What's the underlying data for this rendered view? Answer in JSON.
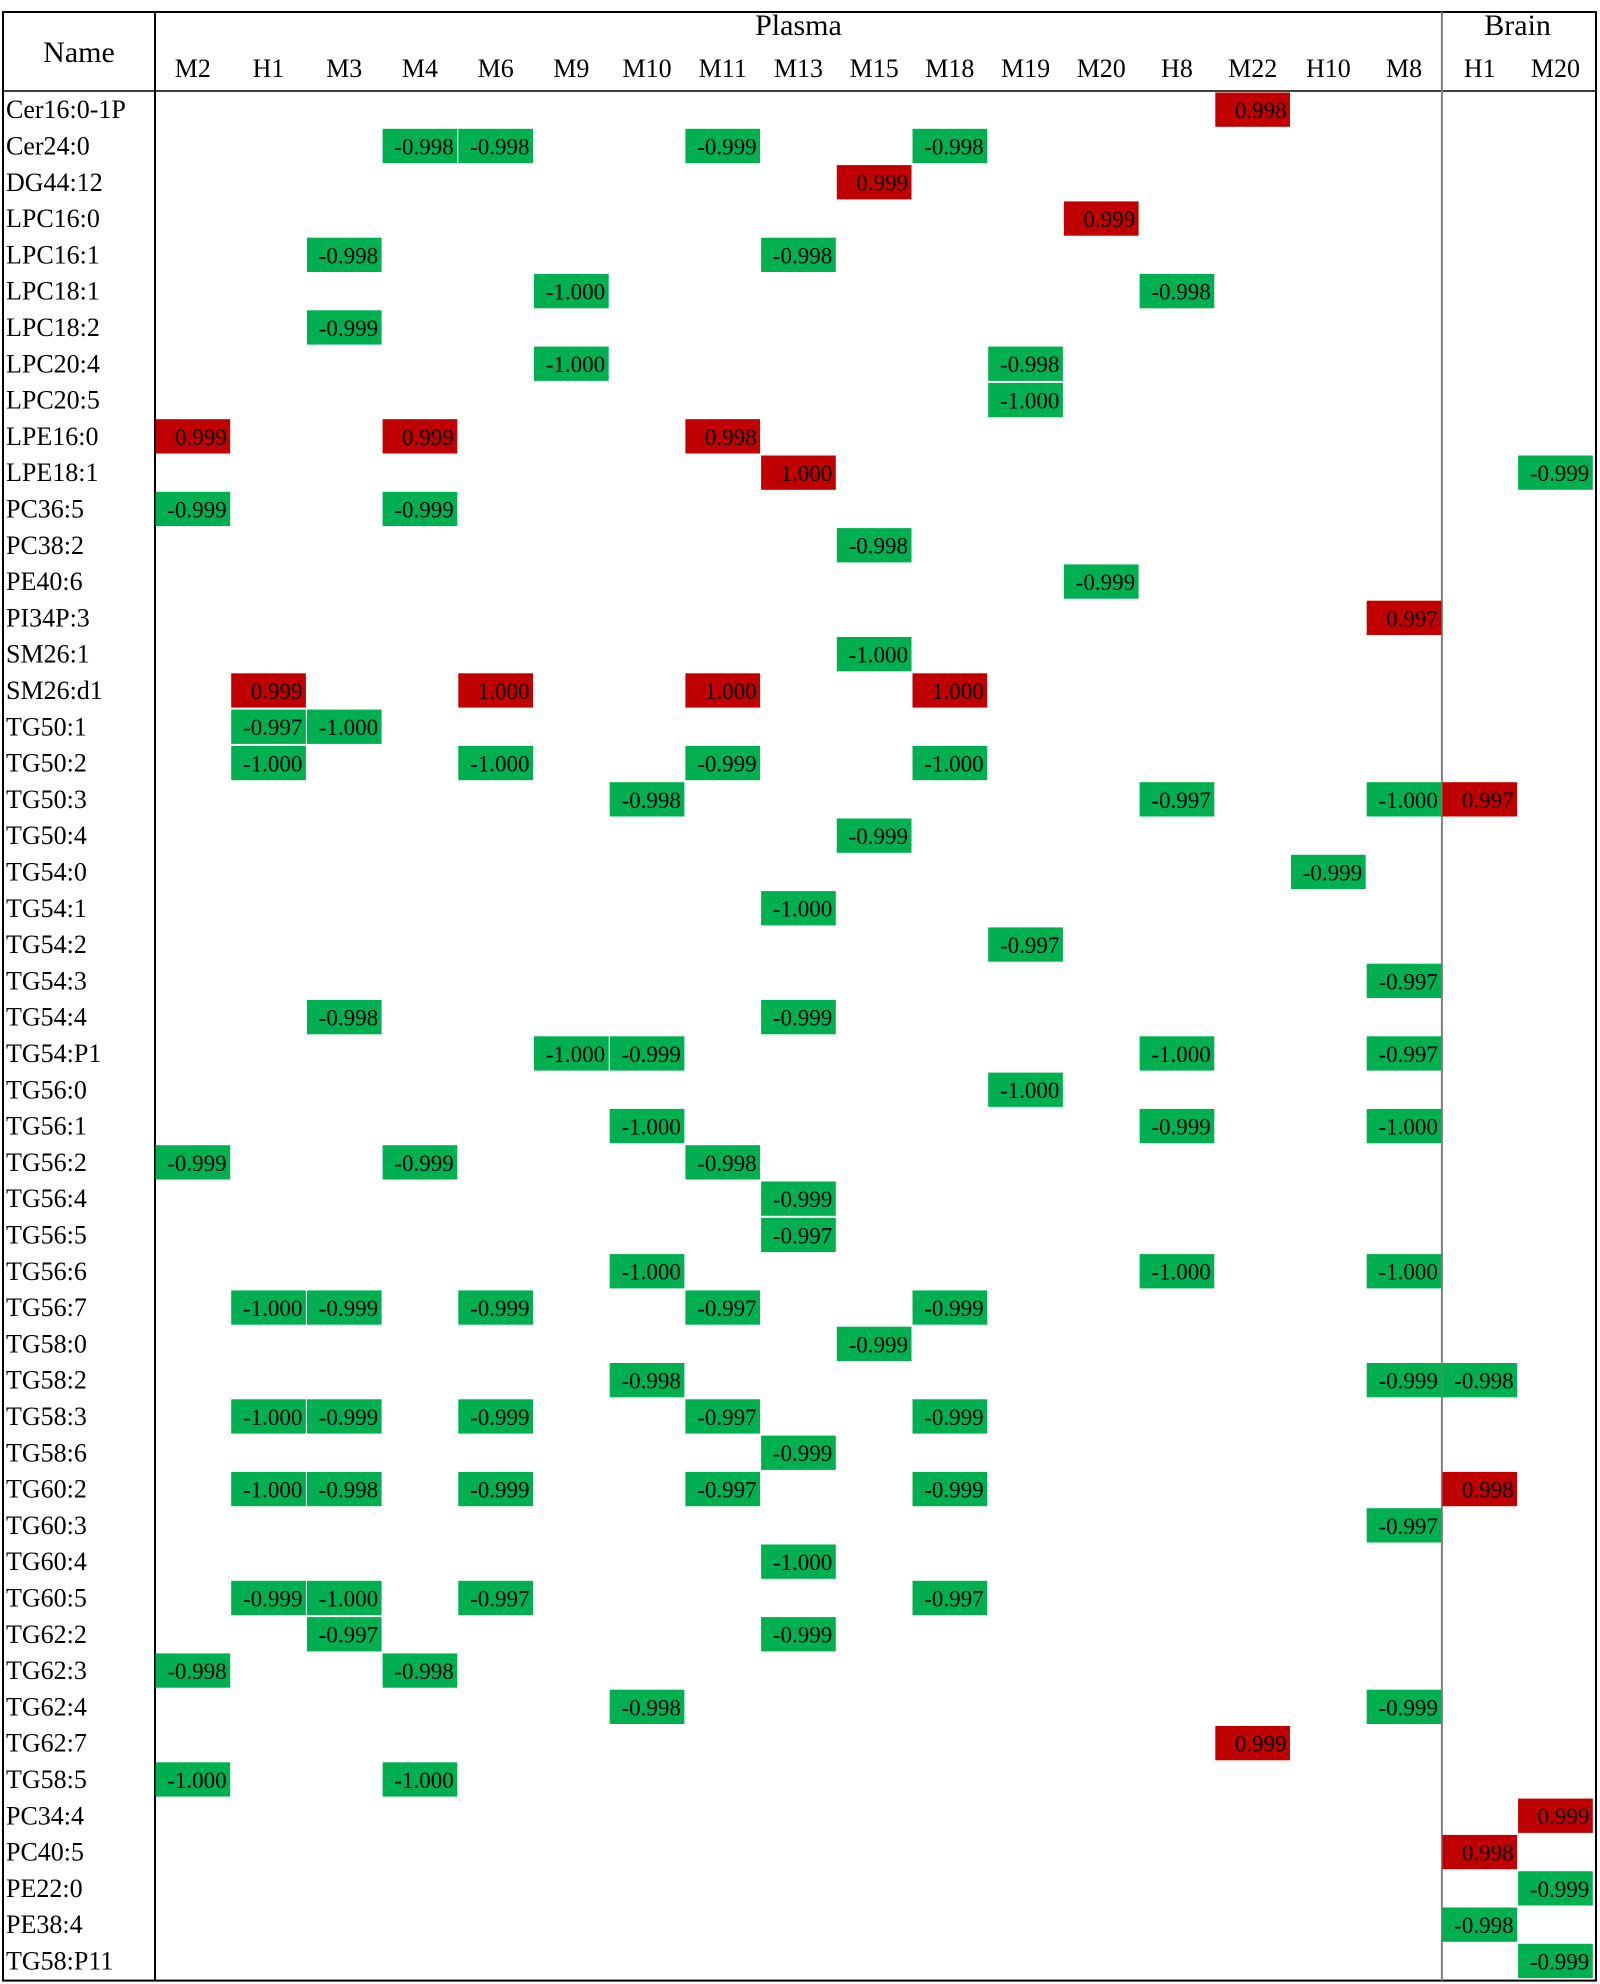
{
  "chart_data": {
    "type": "heatmap",
    "row_header": "Name",
    "groups": [
      {
        "label": "Plasma",
        "columns": [
          "M2",
          "H1",
          "M3",
          "M4",
          "M6",
          "M9",
          "M10",
          "M11",
          "M13",
          "M15",
          "M18",
          "M19",
          "M20",
          "H8",
          "M22",
          "H10",
          "M8"
        ]
      },
      {
        "label": "Brain",
        "columns": [
          "H1",
          "M20"
        ]
      }
    ],
    "columns": [
      {
        "group": "Plasma",
        "label": "M2"
      },
      {
        "group": "Plasma",
        "label": "H1"
      },
      {
        "group": "Plasma",
        "label": "M3"
      },
      {
        "group": "Plasma",
        "label": "M4"
      },
      {
        "group": "Plasma",
        "label": "M6"
      },
      {
        "group": "Plasma",
        "label": "M9"
      },
      {
        "group": "Plasma",
        "label": "M10"
      },
      {
        "group": "Plasma",
        "label": "M11"
      },
      {
        "group": "Plasma",
        "label": "M13"
      },
      {
        "group": "Plasma",
        "label": "M15"
      },
      {
        "group": "Plasma",
        "label": "M18"
      },
      {
        "group": "Plasma",
        "label": "M19"
      },
      {
        "group": "Plasma",
        "label": "M20"
      },
      {
        "group": "Plasma",
        "label": "H8"
      },
      {
        "group": "Plasma",
        "label": "M22"
      },
      {
        "group": "Plasma",
        "label": "H10"
      },
      {
        "group": "Plasma",
        "label": "M8"
      },
      {
        "group": "Brain",
        "label": "H1"
      },
      {
        "group": "Brain",
        "label": "M20"
      }
    ],
    "rows": [
      "Cer16:0-1P",
      "Cer24:0",
      "DG44:12",
      "LPC16:0",
      "LPC16:1",
      "LPC18:1",
      "LPC18:2",
      "LPC20:4",
      "LPC20:5",
      "LPE16:0",
      "LPE18:1",
      "PC36:5",
      "PC38:2",
      "PE40:6",
      "PI34P:3",
      "SM26:1",
      "SM26:d1",
      "TG50:1",
      "TG50:2",
      "TG50:3",
      "TG50:4",
      "TG54:0",
      "TG54:1",
      "TG54:2",
      "TG54:3",
      "TG54:4",
      "TG54:P1",
      "TG56:0",
      "TG56:1",
      "TG56:2",
      "TG56:4",
      "TG56:5",
      "TG56:6",
      "TG56:7",
      "TG58:0",
      "TG58:2",
      "TG58:3",
      "TG58:6",
      "TG60:2",
      "TG60:3",
      "TG60:4",
      "TG60:5",
      "TG62:2",
      "TG62:3",
      "TG62:4",
      "TG62:7",
      "TG58:5",
      "PC34:4",
      "PC40:5",
      "PE22:0",
      "PE38:4",
      "TG58:P11"
    ],
    "cells": [
      {
        "row": 0,
        "col": 14,
        "value": "0.998"
      },
      {
        "row": 1,
        "col": 3,
        "value": "-0.998"
      },
      {
        "row": 1,
        "col": 4,
        "value": "-0.998"
      },
      {
        "row": 1,
        "col": 7,
        "value": "-0.999"
      },
      {
        "row": 1,
        "col": 10,
        "value": "-0.998"
      },
      {
        "row": 2,
        "col": 9,
        "value": "0.999"
      },
      {
        "row": 3,
        "col": 12,
        "value": "0.999"
      },
      {
        "row": 4,
        "col": 2,
        "value": "-0.998"
      },
      {
        "row": 4,
        "col": 8,
        "value": "-0.998"
      },
      {
        "row": 5,
        "col": 5,
        "value": "-1.000"
      },
      {
        "row": 5,
        "col": 13,
        "value": "-0.998"
      },
      {
        "row": 6,
        "col": 2,
        "value": "-0.999"
      },
      {
        "row": 7,
        "col": 5,
        "value": "-1.000"
      },
      {
        "row": 7,
        "col": 11,
        "value": "-0.998"
      },
      {
        "row": 8,
        "col": 11,
        "value": "-1.000"
      },
      {
        "row": 9,
        "col": 0,
        "value": "0.999"
      },
      {
        "row": 9,
        "col": 3,
        "value": "0.999"
      },
      {
        "row": 9,
        "col": 7,
        "value": "0.998"
      },
      {
        "row": 10,
        "col": 8,
        "value": "1.000"
      },
      {
        "row": 10,
        "col": 18,
        "value": "-0.999"
      },
      {
        "row": 11,
        "col": 0,
        "value": "-0.999"
      },
      {
        "row": 11,
        "col": 3,
        "value": "-0.999"
      },
      {
        "row": 12,
        "col": 9,
        "value": "-0.998"
      },
      {
        "row": 13,
        "col": 12,
        "value": "-0.999"
      },
      {
        "row": 14,
        "col": 16,
        "value": "0.997"
      },
      {
        "row": 15,
        "col": 9,
        "value": "-1.000"
      },
      {
        "row": 16,
        "col": 1,
        "value": "0.999"
      },
      {
        "row": 16,
        "col": 4,
        "value": "1.000"
      },
      {
        "row": 16,
        "col": 7,
        "value": "1.000"
      },
      {
        "row": 16,
        "col": 10,
        "value": "1.000"
      },
      {
        "row": 17,
        "col": 1,
        "value": "-0.997"
      },
      {
        "row": 17,
        "col": 2,
        "value": "-1.000"
      },
      {
        "row": 18,
        "col": 1,
        "value": "-1.000"
      },
      {
        "row": 18,
        "col": 4,
        "value": "-1.000"
      },
      {
        "row": 18,
        "col": 7,
        "value": "-0.999"
      },
      {
        "row": 18,
        "col": 10,
        "value": "-1.000"
      },
      {
        "row": 19,
        "col": 6,
        "value": "-0.998"
      },
      {
        "row": 19,
        "col": 13,
        "value": "-0.997"
      },
      {
        "row": 19,
        "col": 16,
        "value": "-1.000"
      },
      {
        "row": 19,
        "col": 17,
        "value": "0.997"
      },
      {
        "row": 20,
        "col": 9,
        "value": "-0.999"
      },
      {
        "row": 21,
        "col": 15,
        "value": "-0.999"
      },
      {
        "row": 22,
        "col": 8,
        "value": "-1.000"
      },
      {
        "row": 23,
        "col": 11,
        "value": "-0.997"
      },
      {
        "row": 24,
        "col": 16,
        "value": "-0.997"
      },
      {
        "row": 25,
        "col": 2,
        "value": "-0.998"
      },
      {
        "row": 25,
        "col": 8,
        "value": "-0.999"
      },
      {
        "row": 26,
        "col": 5,
        "value": "-1.000"
      },
      {
        "row": 26,
        "col": 6,
        "value": "-0.999"
      },
      {
        "row": 26,
        "col": 13,
        "value": "-1.000"
      },
      {
        "row": 26,
        "col": 16,
        "value": "-0.997"
      },
      {
        "row": 27,
        "col": 11,
        "value": "-1.000"
      },
      {
        "row": 28,
        "col": 6,
        "value": "-1.000"
      },
      {
        "row": 28,
        "col": 13,
        "value": "-0.999"
      },
      {
        "row": 28,
        "col": 16,
        "value": "-1.000"
      },
      {
        "row": 29,
        "col": 0,
        "value": "-0.999"
      },
      {
        "row": 29,
        "col": 3,
        "value": "-0.999"
      },
      {
        "row": 29,
        "col": 7,
        "value": "-0.998"
      },
      {
        "row": 30,
        "col": 8,
        "value": "-0.999"
      },
      {
        "row": 31,
        "col": 8,
        "value": "-0.997"
      },
      {
        "row": 32,
        "col": 6,
        "value": "-1.000"
      },
      {
        "row": 32,
        "col": 13,
        "value": "-1.000"
      },
      {
        "row": 32,
        "col": 16,
        "value": "-1.000"
      },
      {
        "row": 33,
        "col": 1,
        "value": "-1.000"
      },
      {
        "row": 33,
        "col": 2,
        "value": "-0.999"
      },
      {
        "row": 33,
        "col": 4,
        "value": "-0.999"
      },
      {
        "row": 33,
        "col": 7,
        "value": "-0.997"
      },
      {
        "row": 33,
        "col": 10,
        "value": "-0.999"
      },
      {
        "row": 34,
        "col": 9,
        "value": "-0.999"
      },
      {
        "row": 35,
        "col": 6,
        "value": "-0.998"
      },
      {
        "row": 35,
        "col": 16,
        "value": "-0.999"
      },
      {
        "row": 35,
        "col": 17,
        "value": "-0.998"
      },
      {
        "row": 36,
        "col": 1,
        "value": "-1.000"
      },
      {
        "row": 36,
        "col": 2,
        "value": "-0.999"
      },
      {
        "row": 36,
        "col": 4,
        "value": "-0.999"
      },
      {
        "row": 36,
        "col": 7,
        "value": "-0.997"
      },
      {
        "row": 36,
        "col": 10,
        "value": "-0.999"
      },
      {
        "row": 37,
        "col": 8,
        "value": "-0.999"
      },
      {
        "row": 38,
        "col": 1,
        "value": "-1.000"
      },
      {
        "row": 38,
        "col": 2,
        "value": "-0.998"
      },
      {
        "row": 38,
        "col": 4,
        "value": "-0.999"
      },
      {
        "row": 38,
        "col": 7,
        "value": "-0.997"
      },
      {
        "row": 38,
        "col": 10,
        "value": "-0.999"
      },
      {
        "row": 38,
        "col": 17,
        "value": "0.998"
      },
      {
        "row": 39,
        "col": 16,
        "value": "-0.997"
      },
      {
        "row": 40,
        "col": 8,
        "value": "-1.000"
      },
      {
        "row": 41,
        "col": 1,
        "value": "-0.999"
      },
      {
        "row": 41,
        "col": 2,
        "value": "-1.000"
      },
      {
        "row": 41,
        "col": 4,
        "value": "-0.997"
      },
      {
        "row": 41,
        "col": 10,
        "value": "-0.997"
      },
      {
        "row": 42,
        "col": 2,
        "value": "-0.997"
      },
      {
        "row": 42,
        "col": 8,
        "value": "-0.999"
      },
      {
        "row": 43,
        "col": 0,
        "value": "-0.998"
      },
      {
        "row": 43,
        "col": 3,
        "value": "-0.998"
      },
      {
        "row": 44,
        "col": 6,
        "value": "-0.998"
      },
      {
        "row": 44,
        "col": 16,
        "value": "-0.999"
      },
      {
        "row": 45,
        "col": 14,
        "value": "0.999"
      },
      {
        "row": 46,
        "col": 0,
        "value": "-1.000"
      },
      {
        "row": 46,
        "col": 3,
        "value": "-1.000"
      },
      {
        "row": 47,
        "col": 18,
        "value": "0.999"
      },
      {
        "row": 48,
        "col": 17,
        "value": "0.998"
      },
      {
        "row": 49,
        "col": 18,
        "value": "-0.999"
      },
      {
        "row": 50,
        "col": 17,
        "value": "-0.998"
      },
      {
        "row": 51,
        "col": 18,
        "value": "-0.999"
      }
    ],
    "colors": {
      "positive": "#c00000",
      "negative": "#00b050",
      "text": "#000000",
      "border": "#000000",
      "divider": "#7f7f7f"
    }
  }
}
